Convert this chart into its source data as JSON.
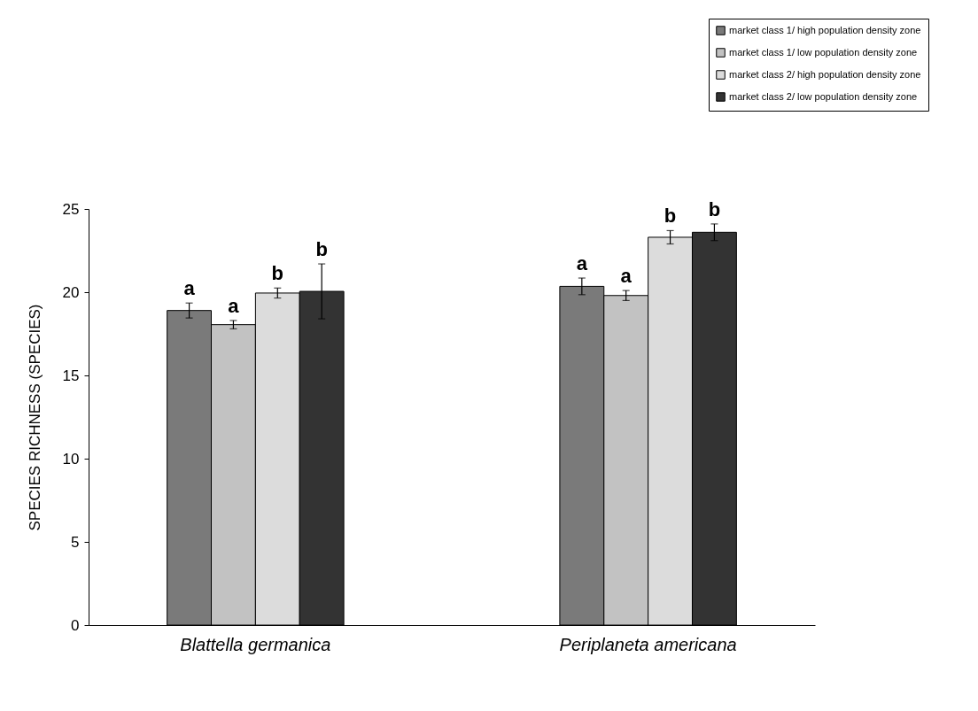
{
  "chart_data": {
    "type": "bar",
    "ylabel": "SPECIES RICHNESS (SPECIES)",
    "categories": [
      "Blattella germanica",
      "Periplaneta americana"
    ],
    "series": [
      {
        "name": "market class 1/ high population density zone",
        "color": "#7a7a7a",
        "values": [
          18.9,
          20.35
        ],
        "errors": [
          0.45,
          0.5
        ],
        "value_labels": [
          "a",
          "a"
        ]
      },
      {
        "name": "market class 1/ low population density zone",
        "color": "#c2c2c2",
        "values": [
          18.05,
          19.8
        ],
        "errors": [
          0.25,
          0.3
        ],
        "value_labels": [
          "a",
          "a"
        ]
      },
      {
        "name": "market class 2/ high population density zone",
        "color": "#dcdcdc",
        "values": [
          19.95,
          23.3
        ],
        "errors": [
          0.3,
          0.4
        ],
        "value_labels": [
          "b",
          "b"
        ]
      },
      {
        "name": "market class 2/ low population density zone",
        "color": "#333333",
        "values": [
          20.05,
          23.6
        ],
        "errors": [
          1.65,
          0.5
        ],
        "value_labels": [
          "b",
          "b"
        ]
      }
    ],
    "ylim": [
      0,
      25
    ],
    "yticks": [
      0,
      5,
      10,
      15,
      20,
      25
    ],
    "grid": false,
    "legend": "top right"
  }
}
